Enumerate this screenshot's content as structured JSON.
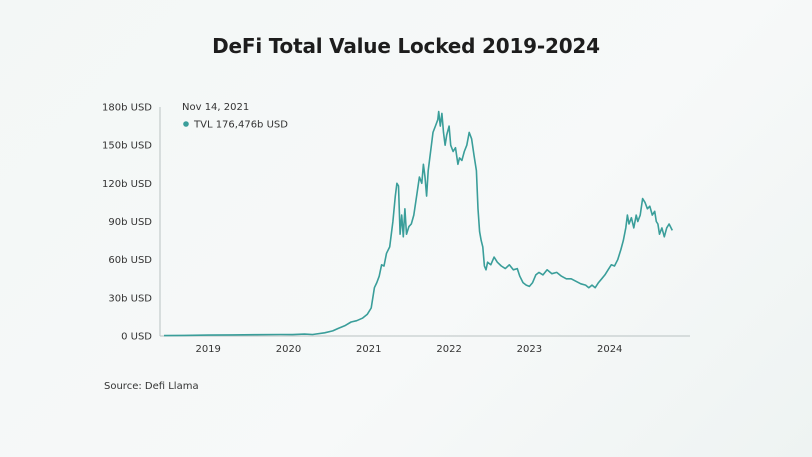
{
  "chart_data": {
    "type": "line",
    "title": "DeFi Total Value Locked 2019-2024",
    "source": "Source: Defi Llama",
    "xlabel": "",
    "ylabel": "",
    "y_ticks": [
      "0 USD",
      "30b USD",
      "60b USD",
      "90b USD",
      "120b USD",
      "150b USD",
      "180b USD"
    ],
    "x_ticks": [
      "2019",
      "2020",
      "2021",
      "2022",
      "2023",
      "2024"
    ],
    "ylim": [
      0,
      180
    ],
    "xlim": [
      2018.4,
      2025.0
    ],
    "grid": false,
    "line_color": "#3a9e9a",
    "tooltip": {
      "date": "Nov 14, 2021",
      "label": "TVL 176,476b USD"
    },
    "series": [
      {
        "values": [
          [
            2018.45,
            0.3
          ],
          [
            2018.7,
            0.5
          ],
          [
            2019.0,
            0.7
          ],
          [
            2019.3,
            0.9
          ],
          [
            2019.6,
            1.0
          ],
          [
            2019.9,
            1.2
          ],
          [
            2020.05,
            1.1
          ],
          [
            2020.2,
            1.5
          ],
          [
            2020.3,
            1.2
          ],
          [
            2020.45,
            2.5
          ],
          [
            2020.55,
            4
          ],
          [
            2020.62,
            6
          ],
          [
            2020.7,
            8
          ],
          [
            2020.78,
            11
          ],
          [
            2020.85,
            12
          ],
          [
            2020.92,
            14
          ],
          [
            2020.98,
            17
          ],
          [
            2021.03,
            22
          ],
          [
            2021.07,
            38
          ],
          [
            2021.1,
            42
          ],
          [
            2021.13,
            47
          ],
          [
            2021.16,
            56
          ],
          [
            2021.19,
            55
          ],
          [
            2021.22,
            65
          ],
          [
            2021.26,
            70
          ],
          [
            2021.3,
            90
          ],
          [
            2021.33,
            110
          ],
          [
            2021.35,
            120
          ],
          [
            2021.37,
            118
          ],
          [
            2021.39,
            80
          ],
          [
            2021.41,
            95
          ],
          [
            2021.43,
            78
          ],
          [
            2021.45,
            100
          ],
          [
            2021.47,
            80
          ],
          [
            2021.5,
            86
          ],
          [
            2021.53,
            88
          ],
          [
            2021.56,
            95
          ],
          [
            2021.6,
            112
          ],
          [
            2021.63,
            125
          ],
          [
            2021.66,
            120
          ],
          [
            2021.68,
            135
          ],
          [
            2021.7,
            125
          ],
          [
            2021.72,
            110
          ],
          [
            2021.74,
            130
          ],
          [
            2021.76,
            140
          ],
          [
            2021.78,
            150
          ],
          [
            2021.8,
            160
          ],
          [
            2021.83,
            165
          ],
          [
            2021.86,
            170
          ],
          [
            2021.87,
            176.5
          ],
          [
            2021.89,
            165
          ],
          [
            2021.91,
            175
          ],
          [
            2021.93,
            160
          ],
          [
            2021.95,
            150
          ],
          [
            2021.97,
            158
          ],
          [
            2022.0,
            165
          ],
          [
            2022.02,
            150
          ],
          [
            2022.05,
            145
          ],
          [
            2022.08,
            148
          ],
          [
            2022.11,
            135
          ],
          [
            2022.13,
            140
          ],
          [
            2022.16,
            138
          ],
          [
            2022.19,
            145
          ],
          [
            2022.22,
            150
          ],
          [
            2022.25,
            160
          ],
          [
            2022.28,
            155
          ],
          [
            2022.31,
            142
          ],
          [
            2022.34,
            130
          ],
          [
            2022.36,
            100
          ],
          [
            2022.38,
            82
          ],
          [
            2022.4,
            75
          ],
          [
            2022.42,
            70
          ],
          [
            2022.44,
            55
          ],
          [
            2022.46,
            52
          ],
          [
            2022.48,
            58
          ],
          [
            2022.52,
            56
          ],
          [
            2022.56,
            62
          ],
          [
            2022.6,
            58
          ],
          [
            2022.65,
            55
          ],
          [
            2022.7,
            53
          ],
          [
            2022.75,
            56
          ],
          [
            2022.8,
            52
          ],
          [
            2022.85,
            53
          ],
          [
            2022.88,
            47
          ],
          [
            2022.92,
            42
          ],
          [
            2022.96,
            40
          ],
          [
            2023.0,
            39
          ],
          [
            2023.04,
            42
          ],
          [
            2023.08,
            48
          ],
          [
            2023.12,
            50
          ],
          [
            2023.17,
            48
          ],
          [
            2023.22,
            52
          ],
          [
            2023.28,
            49
          ],
          [
            2023.34,
            50
          ],
          [
            2023.4,
            47
          ],
          [
            2023.46,
            45
          ],
          [
            2023.52,
            45
          ],
          [
            2023.58,
            43
          ],
          [
            2023.64,
            41
          ],
          [
            2023.7,
            40
          ],
          [
            2023.74,
            38
          ],
          [
            2023.78,
            40
          ],
          [
            2023.82,
            38
          ],
          [
            2023.86,
            42
          ],
          [
            2023.9,
            45
          ],
          [
            2023.94,
            48
          ],
          [
            2023.98,
            52
          ],
          [
            2024.02,
            56
          ],
          [
            2024.06,
            55
          ],
          [
            2024.1,
            60
          ],
          [
            2024.14,
            68
          ],
          [
            2024.17,
            75
          ],
          [
            2024.2,
            85
          ],
          [
            2024.22,
            95
          ],
          [
            2024.24,
            88
          ],
          [
            2024.27,
            93
          ],
          [
            2024.3,
            85
          ],
          [
            2024.33,
            95
          ],
          [
            2024.35,
            90
          ],
          [
            2024.38,
            95
          ],
          [
            2024.41,
            108
          ],
          [
            2024.44,
            105
          ],
          [
            2024.47,
            100
          ],
          [
            2024.5,
            102
          ],
          [
            2024.53,
            95
          ],
          [
            2024.56,
            98
          ],
          [
            2024.58,
            90
          ],
          [
            2024.6,
            88
          ],
          [
            2024.62,
            80
          ],
          [
            2024.65,
            85
          ],
          [
            2024.68,
            78
          ],
          [
            2024.71,
            85
          ],
          [
            2024.74,
            88
          ],
          [
            2024.78,
            83
          ]
        ]
      }
    ]
  }
}
